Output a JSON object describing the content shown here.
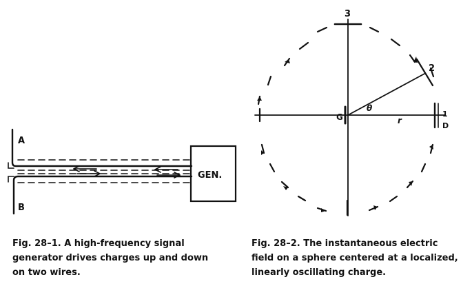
{
  "fig1": {
    "label_a": "A",
    "label_b": "B",
    "generator_label": "GEN.",
    "caption_lines": [
      "Fig. 28–1.  A high-frequency signal",
      "generator drives charges up and down",
      "on two wires."
    ]
  },
  "fig2": {
    "label_3": "3",
    "label_2": "2",
    "label_g": "G",
    "label_theta": "θ",
    "label_r": "r",
    "label_1": "1",
    "label_d": "D",
    "caption_lines": [
      "Fig. 28–2.  The instantaneous electric",
      "field on a sphere centered at a localized,",
      "linearly oscillating charge."
    ]
  }
}
